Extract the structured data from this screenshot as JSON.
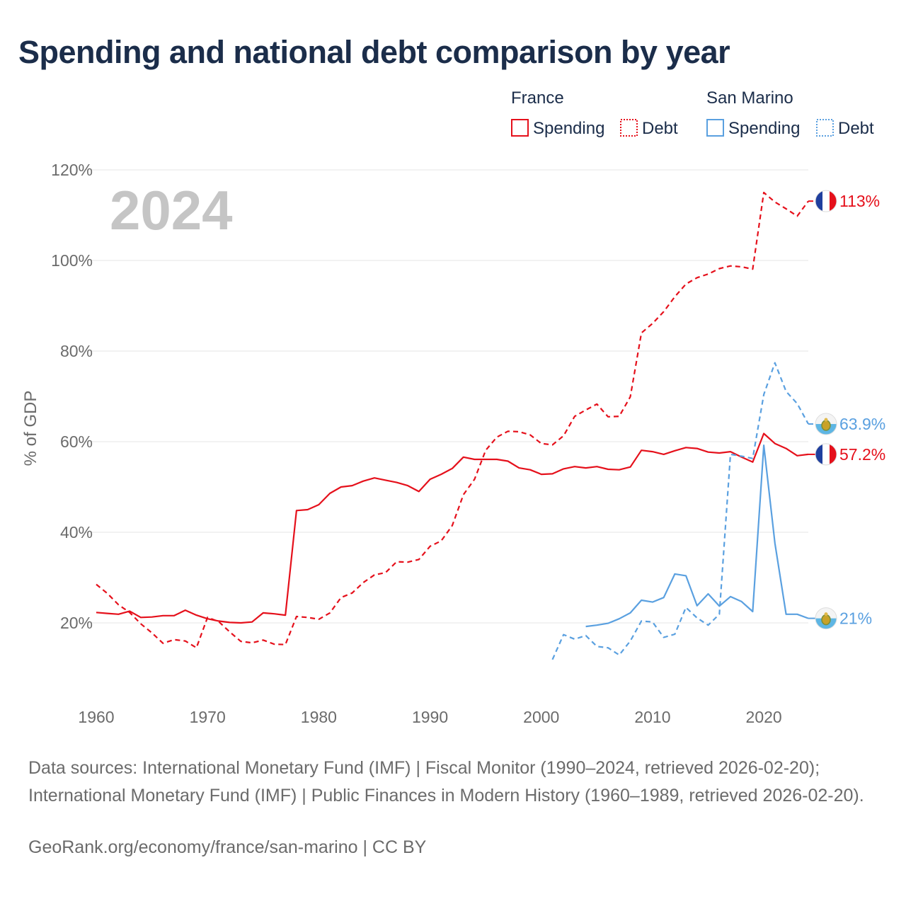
{
  "title": "Spending and national debt comparison by year",
  "year_label": "2024",
  "sources": "Data sources: International Monetary Fund (IMF) | Fiscal Monitor (1990–2024, retrieved 2026-02-20); International Monetary Fund (IMF) | Public Finances in Modern History (1960–1989, retrieved 2026-02-20).",
  "credit": "GeoRank.org/economy/france/san-marino | CC BY",
  "colors": {
    "france": "#e5101b",
    "san_marino": "#5aa0e0",
    "title": "#1b2d4a",
    "year": "#c5c5c5",
    "text": "#6b6b6b",
    "grid": "#e6e6e6"
  },
  "legend": {
    "groups": [
      {
        "name": "France",
        "items": [
          {
            "label": "Spending",
            "style": "solid"
          },
          {
            "label": "Debt",
            "style": "dotted"
          }
        ]
      },
      {
        "name": "San Marino",
        "items": [
          {
            "label": "Spending",
            "style": "solid"
          },
          {
            "label": "Debt",
            "style": "dotted"
          }
        ]
      }
    ]
  },
  "chart_data": {
    "type": "line",
    "title": "Spending and national debt comparison by year",
    "ylabel": "% of GDP",
    "xlabel": "",
    "xlim": [
      1960,
      2024
    ],
    "ylim": [
      0,
      120
    ],
    "x_ticks": [
      1960,
      1970,
      1980,
      1990,
      2000,
      2010,
      2020
    ],
    "y_ticks": [
      20,
      40,
      60,
      80,
      100,
      120
    ],
    "y_tick_labels": [
      "20%",
      "40%",
      "60%",
      "80%",
      "100%",
      "120%"
    ],
    "grid": true,
    "legend_position": "top-right",
    "series": [
      {
        "name": "France Spending",
        "country": "France",
        "color": "#e5101b",
        "dash": "solid",
        "end_label": "57.2%",
        "flag": "france",
        "x": [
          1960,
          1961,
          1962,
          1963,
          1964,
          1965,
          1966,
          1967,
          1968,
          1969,
          1970,
          1971,
          1972,
          1973,
          1974,
          1975,
          1976,
          1977,
          1978,
          1979,
          1980,
          1981,
          1982,
          1983,
          1984,
          1985,
          1986,
          1987,
          1988,
          1989,
          1990,
          1991,
          1992,
          1993,
          1994,
          1995,
          1996,
          1997,
          1998,
          1999,
          2000,
          2001,
          2002,
          2003,
          2004,
          2005,
          2006,
          2007,
          2008,
          2009,
          2010,
          2011,
          2012,
          2013,
          2014,
          2015,
          2016,
          2017,
          2018,
          2019,
          2020,
          2021,
          2022,
          2023,
          2024
        ],
        "values": [
          22.3,
          22.1,
          21.9,
          22.6,
          21.2,
          21.3,
          21.6,
          21.6,
          22.8,
          21.7,
          20.9,
          20.4,
          20.1,
          20.0,
          20.2,
          22.2,
          22.0,
          21.7,
          44.8,
          45.0,
          46.1,
          48.6,
          50.0,
          50.3,
          51.3,
          52.0,
          51.5,
          51.0,
          50.3,
          49.0,
          51.7,
          52.8,
          54.1,
          56.6,
          56.1,
          56.1,
          56.1,
          55.7,
          54.2,
          53.8,
          52.8,
          52.9,
          54.0,
          54.5,
          54.2,
          54.5,
          53.9,
          53.8,
          54.4,
          58.1,
          57.8,
          57.2,
          58.0,
          58.7,
          58.5,
          57.7,
          57.5,
          57.8,
          56.6,
          55.5,
          61.8,
          59.6,
          58.5,
          56.9,
          57.2
        ]
      },
      {
        "name": "France Debt",
        "country": "France",
        "color": "#e5101b",
        "dash": "dashed",
        "end_label": "113%",
        "flag": "france",
        "x": [
          1960,
          1961,
          1962,
          1963,
          1964,
          1965,
          1966,
          1967,
          1968,
          1969,
          1970,
          1971,
          1972,
          1973,
          1974,
          1975,
          1976,
          1977,
          1978,
          1979,
          1980,
          1981,
          1982,
          1983,
          1984,
          1985,
          1986,
          1987,
          1988,
          1989,
          1990,
          1991,
          1992,
          1993,
          1994,
          1995,
          1996,
          1997,
          1998,
          1999,
          2000,
          2001,
          2002,
          2003,
          2004,
          2005,
          2006,
          2007,
          2008,
          2009,
          2010,
          2011,
          2012,
          2013,
          2014,
          2015,
          2016,
          2017,
          2018,
          2019,
          2020,
          2021,
          2022,
          2023,
          2024
        ],
        "values": [
          28.5,
          26.5,
          24.0,
          22.3,
          19.8,
          17.8,
          15.5,
          16.3,
          16.0,
          14.5,
          21.2,
          20.3,
          18.0,
          15.9,
          15.6,
          16.2,
          15.3,
          15.2,
          21.4,
          21.2,
          20.8,
          22.2,
          25.6,
          26.6,
          28.9,
          30.6,
          31.1,
          33.5,
          33.4,
          34.0,
          36.9,
          38.1,
          41.5,
          48.3,
          51.7,
          58.1,
          61.0,
          62.3,
          62.2,
          61.5,
          59.6,
          59.3,
          61.3,
          65.6,
          67.0,
          68.3,
          65.5,
          65.6,
          69.9,
          84.0,
          86.1,
          88.7,
          92.0,
          94.8,
          96.2,
          97.0,
          98.2,
          98.8,
          98.6,
          98.1,
          115.0,
          112.9,
          111.4,
          109.8,
          113.1
        ]
      },
      {
        "name": "San Marino Spending",
        "country": "San Marino",
        "color": "#5aa0e0",
        "dash": "solid",
        "end_label": "21%",
        "flag": "san-marino",
        "x": [
          2004,
          2005,
          2006,
          2007,
          2008,
          2009,
          2010,
          2011,
          2012,
          2013,
          2014,
          2015,
          2016,
          2017,
          2018,
          2019,
          2020,
          2021,
          2022,
          2023,
          2024
        ],
        "values": [
          19.2,
          19.5,
          19.9,
          20.9,
          22.2,
          25.0,
          24.6,
          25.6,
          30.8,
          30.4,
          23.8,
          26.4,
          23.7,
          25.8,
          24.7,
          22.5,
          59.2,
          37.6,
          21.9,
          21.9,
          21.0
        ]
      },
      {
        "name": "San Marino Debt",
        "country": "San Marino",
        "color": "#5aa0e0",
        "dash": "dashed",
        "end_label": "63.9%",
        "flag": "san-marino",
        "x": [
          2001,
          2002,
          2003,
          2004,
          2005,
          2006,
          2007,
          2008,
          2009,
          2010,
          2011,
          2012,
          2013,
          2014,
          2015,
          2016,
          2017,
          2018,
          2019,
          2020,
          2021,
          2022,
          2023,
          2024
        ],
        "values": [
          11.9,
          17.4,
          16.4,
          17.2,
          14.8,
          14.5,
          12.9,
          16.0,
          20.4,
          20.2,
          16.8,
          17.5,
          23.4,
          21.1,
          19.5,
          21.9,
          57.2,
          56.8,
          56.3,
          70.4,
          77.4,
          71.1,
          68.4,
          63.9
        ]
      }
    ]
  }
}
